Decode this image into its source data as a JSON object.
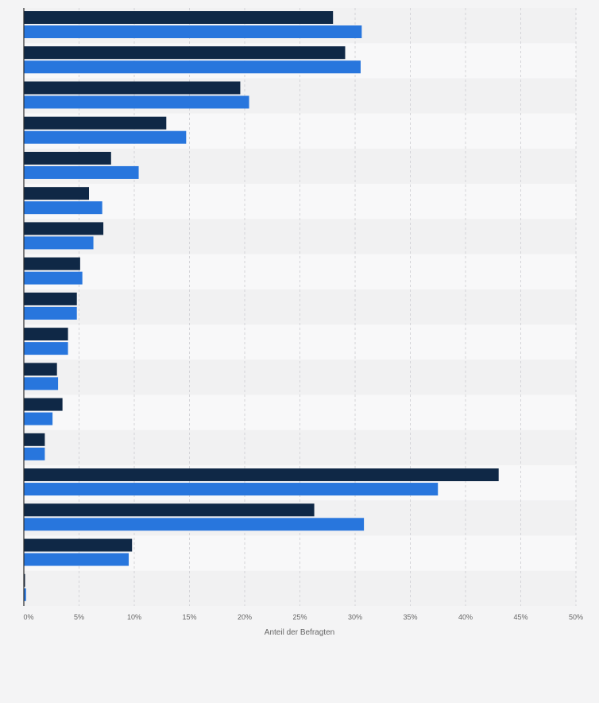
{
  "chart_data": {
    "type": "bar",
    "orientation": "horizontal",
    "xlabel": "Anteil der Befragten",
    "x_ticks": [
      "0%",
      "5%",
      "10%",
      "15%",
      "20%",
      "25%",
      "30%",
      "35%",
      "40%",
      "45%",
      "50%"
    ],
    "xlim": [
      0,
      50
    ],
    "grid": true,
    "category_count": 17,
    "series": [
      {
        "color": "#0f2846",
        "values": [
          28.0,
          29.1,
          19.6,
          12.9,
          7.9,
          5.9,
          7.2,
          5.1,
          4.8,
          4.0,
          3.0,
          3.5,
          1.9,
          43.0,
          26.3,
          9.8,
          0.1
        ]
      },
      {
        "color": "#2876dd",
        "values": [
          30.6,
          30.5,
          20.4,
          14.7,
          10.4,
          7.1,
          6.3,
          5.3,
          4.8,
          4.0,
          3.1,
          2.6,
          1.9,
          37.5,
          30.8,
          9.5,
          0.2
        ]
      }
    ]
  }
}
